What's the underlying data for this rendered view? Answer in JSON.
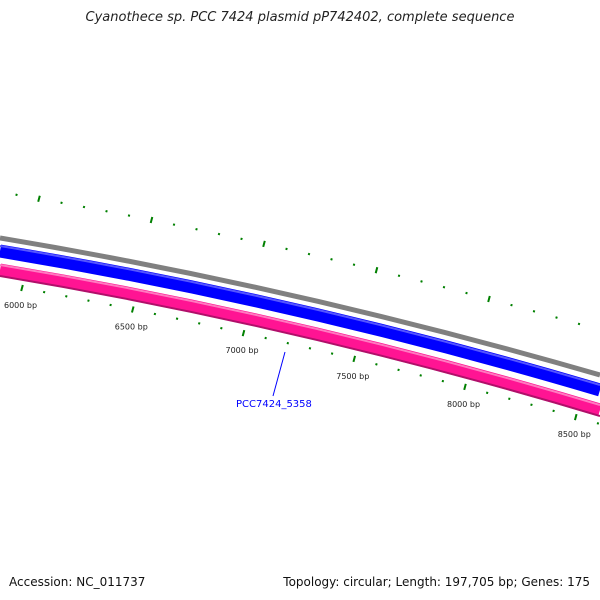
{
  "title": "Cyanothece sp. PCC 7424 plasmid pP742402, complete sequence",
  "accession": "Accession: NC_011737",
  "summary": "Topology: circular; Length: 197,705 bp; Genes: 175",
  "tick_labels": [
    "6000 bp",
    "6500 bp",
    "7000 bp",
    "7500 bp",
    "8000 bp",
    "8500 bp"
  ],
  "gene_label": "PCC7424_5358",
  "colors": {
    "backbone": "#808080",
    "forward": "#0000ff",
    "reverse": "#ff1493",
    "ticks": "#008000",
    "gene_label": "#0000ff"
  }
}
